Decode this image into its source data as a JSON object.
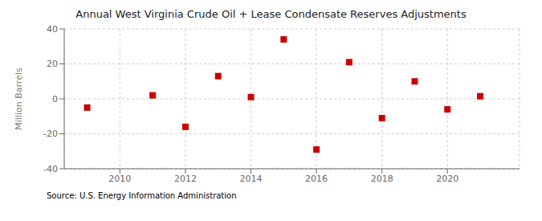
{
  "chart_data": {
    "type": "scatter",
    "title": "Annual West Virginia Crude Oil + Lease Condensate Reserves Adjustments",
    "ylabel": "Million Barrels",
    "annotations": [
      "Source: U.S. Energy Information Administration"
    ],
    "x": [
      2009,
      2011,
      2012,
      2013,
      2014,
      2015,
      2016,
      2017,
      2018,
      2019,
      2020,
      2021
    ],
    "values": [
      -5.0,
      2.0,
      -16.0,
      13.0,
      1.0,
      34.0,
      -29.0,
      21.0,
      -11.0,
      10.0,
      -6.0,
      1.5
    ],
    "xlim": [
      2008.3,
      2022.2
    ],
    "ylim": [
      -40,
      40
    ],
    "xticks": [
      2010,
      2012,
      2014,
      2016,
      2018,
      2020
    ],
    "yticks": [
      -40,
      -20,
      0,
      20,
      40
    ],
    "color": "#cc0000",
    "marker": "square",
    "grid": true
  }
}
